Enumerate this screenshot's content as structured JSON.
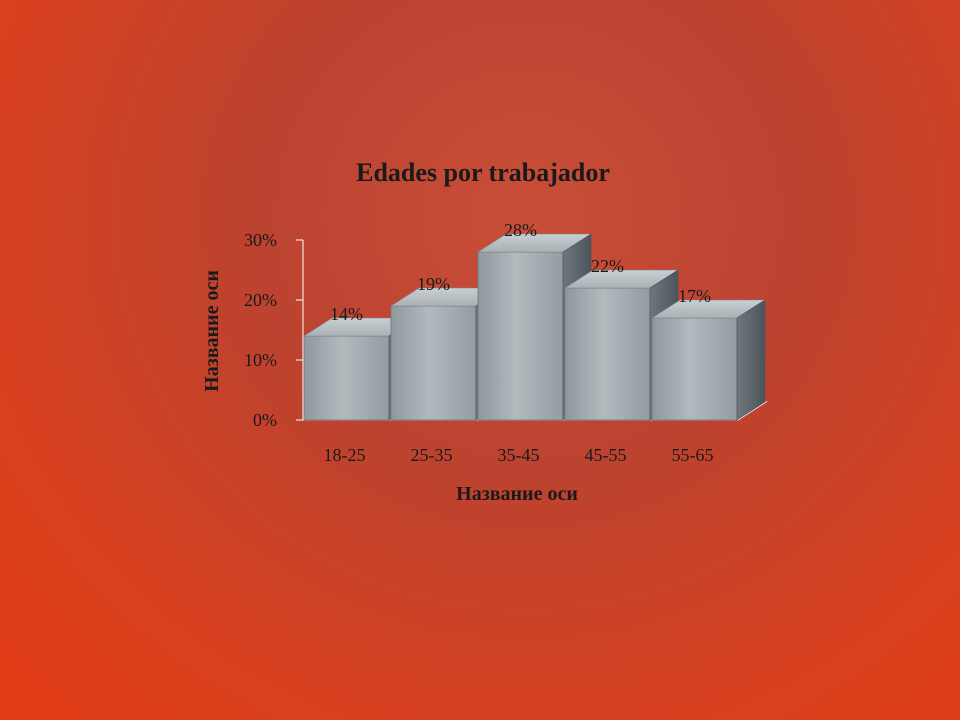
{
  "chart_data": {
    "type": "bar",
    "title": "Edades por trabajador",
    "xlabel": "Название оси",
    "ylabel": "Название оси",
    "categories": [
      "18-25",
      "25-35",
      "35-45",
      "45-55",
      "55-65"
    ],
    "values": [
      14,
      19,
      28,
      22,
      17
    ],
    "data_labels": [
      "14%",
      "19%",
      "28%",
      "22%",
      "17%"
    ],
    "y_ticks": [
      0,
      10,
      20,
      30
    ],
    "y_tick_labels": [
      "0%",
      "10%",
      "20%",
      "30%"
    ],
    "ylim": [
      0,
      30
    ],
    "grid": false,
    "legend": "none",
    "style": "3d-column",
    "colors": {
      "bar_front": "#a3acb1",
      "bar_top": "#bcc3c7",
      "bar_side": "#5f6a71",
      "background": "#c44a33"
    }
  }
}
